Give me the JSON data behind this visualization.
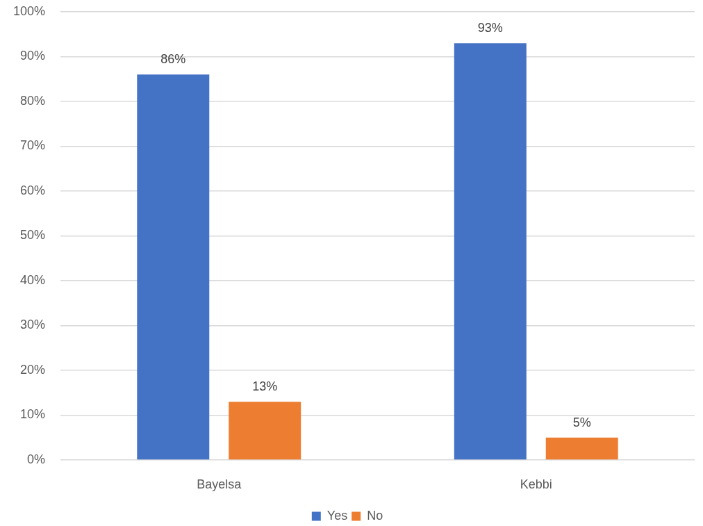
{
  "chart_data": {
    "type": "bar",
    "categories": [
      "Bayelsa",
      "Kebbi"
    ],
    "series": [
      {
        "name": "Yes",
        "color": "#4472c4",
        "values": [
          86,
          93
        ],
        "value_labels": [
          "86%",
          "93%"
        ]
      },
      {
        "name": "No",
        "color": "#ed7d31",
        "values": [
          13,
          5
        ],
        "value_labels": [
          "13%",
          "5%"
        ]
      }
    ],
    "ylim": [
      0,
      100
    ],
    "yticks": [
      {
        "value": 0,
        "label": "0%"
      },
      {
        "value": 10,
        "label": "10%"
      },
      {
        "value": 20,
        "label": "20%"
      },
      {
        "value": 30,
        "label": "30%"
      },
      {
        "value": 40,
        "label": "40%"
      },
      {
        "value": 50,
        "label": "50%"
      },
      {
        "value": 60,
        "label": "60%"
      },
      {
        "value": 70,
        "label": "70%"
      },
      {
        "value": 80,
        "label": "80%"
      },
      {
        "value": 90,
        "label": "90%"
      },
      {
        "value": 100,
        "label": "100%"
      }
    ],
    "grid": "y",
    "legend": "bottom"
  }
}
